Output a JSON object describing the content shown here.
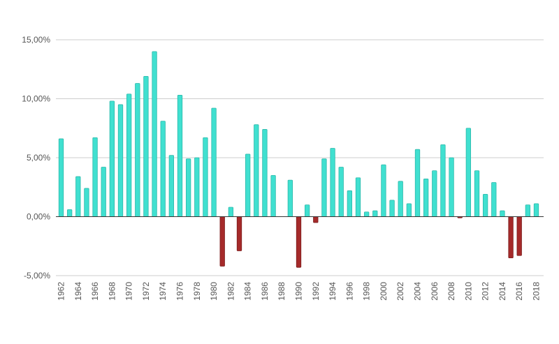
{
  "chart_data": {
    "type": "bar",
    "title": "",
    "xlabel": "",
    "ylabel": "",
    "ylim": [
      -5,
      15
    ],
    "yticks": [
      -5,
      0,
      5,
      10,
      15
    ],
    "ytick_labels": [
      "-5,00%",
      "0,00%",
      "5,00%",
      "10,00%",
      "15,00%"
    ],
    "x": [
      1962,
      1963,
      1964,
      1965,
      1966,
      1967,
      1968,
      1969,
      1970,
      1971,
      1972,
      1973,
      1974,
      1975,
      1976,
      1977,
      1978,
      1979,
      1980,
      1981,
      1982,
      1983,
      1984,
      1985,
      1986,
      1987,
      1988,
      1989,
      1990,
      1991,
      1992,
      1993,
      1994,
      1995,
      1996,
      1997,
      1998,
      1999,
      2000,
      2001,
      2002,
      2003,
      2004,
      2005,
      2006,
      2007,
      2008,
      2009,
      2010,
      2011,
      2012,
      2013,
      2014,
      2015,
      2016,
      2017,
      2018
    ],
    "xtick_labels": [
      "1962",
      "1964",
      "1966",
      "1968",
      "1970",
      "1972",
      "1974",
      "1976",
      "1978",
      "1980",
      "1982",
      "1984",
      "1986",
      "1988",
      "1990",
      "1992",
      "1994",
      "1996",
      "1998",
      "2000",
      "2002",
      "2004",
      "2006",
      "2008",
      "2010",
      "2012",
      "2014",
      "2016",
      "2018"
    ],
    "values": [
      6.6,
      0.6,
      3.4,
      2.4,
      6.7,
      4.2,
      9.8,
      9.5,
      10.4,
      11.3,
      11.9,
      14.0,
      8.1,
      5.2,
      10.3,
      4.9,
      5.0,
      6.7,
      9.2,
      -4.2,
      0.8,
      -2.9,
      5.3,
      7.8,
      7.4,
      3.5,
      0.0,
      3.1,
      -4.3,
      1.0,
      -0.5,
      4.9,
      5.8,
      4.2,
      2.2,
      3.3,
      0.4,
      0.5,
      4.4,
      1.4,
      3.0,
      1.1,
      5.7,
      3.2,
      3.9,
      6.1,
      5.0,
      -0.1,
      7.5,
      3.9,
      1.9,
      2.9,
      0.5,
      -3.5,
      -3.3,
      1.0,
      1.1
    ],
    "colors": {
      "positive": "#40e0d0",
      "positive_stroke": "#2cb8aa",
      "negative": "#a52a2a",
      "negative_stroke": "#7a1c1c"
    },
    "grid": true,
    "legend": "none"
  }
}
